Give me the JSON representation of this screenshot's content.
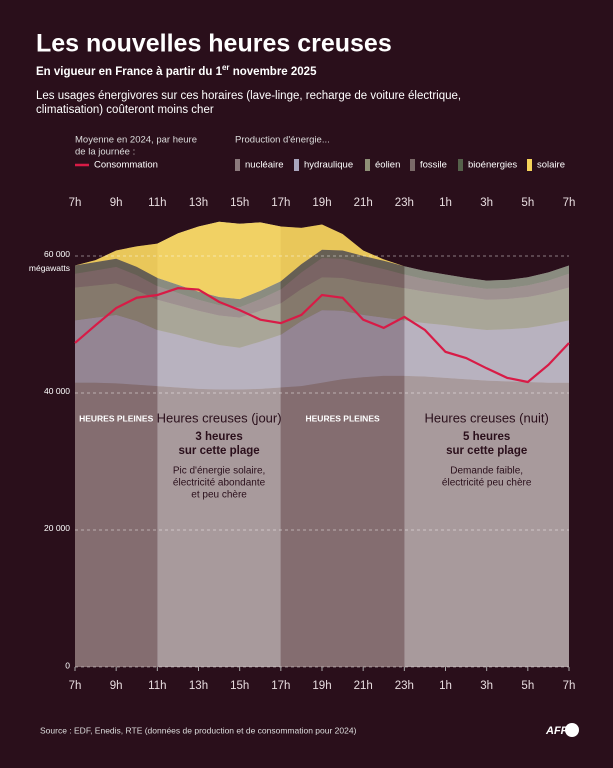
{
  "chart_data": {
    "type": "stacked-area",
    "title": "Les nouvelles heures creuses",
    "subtitle": {
      "before": "En vigueur en France à partir du 1",
      "sup": "er",
      "after": " novembre 2025"
    },
    "description": [
      "Les usages énergivores sur ces horaires (lave-linge, recharge de voiture électrique,",
      "climatisation) coûteront moins cher"
    ],
    "line_legend_note": [
      "Moyenne en 2024, par heure",
      "de la journée :"
    ],
    "area_legend_note": "Production d'énergie...",
    "y_unit": "mégawatts",
    "x": [
      7,
      8,
      9,
      10,
      11,
      12,
      13,
      14,
      15,
      16,
      17,
      18,
      19,
      20,
      21,
      22,
      23,
      24,
      25,
      26,
      27,
      28,
      29,
      30,
      31
    ],
    "xlim": [
      7,
      31
    ],
    "xticks": [
      {
        "value": 7,
        "label": "7h"
      },
      {
        "value": 9,
        "label": "9h"
      },
      {
        "value": 11,
        "label": "11h"
      },
      {
        "value": 13,
        "label": "13h"
      },
      {
        "value": 15,
        "label": "15h"
      },
      {
        "value": 17,
        "label": "17h"
      },
      {
        "value": 19,
        "label": "19h"
      },
      {
        "value": 21,
        "label": "21h"
      },
      {
        "value": 23,
        "label": "23h"
      },
      {
        "value": 25,
        "label": "1h"
      },
      {
        "value": 27,
        "label": "3h"
      },
      {
        "value": 29,
        "label": "5h"
      },
      {
        "value": 31,
        "label": "7h"
      }
    ],
    "ylim": [
      0,
      67000
    ],
    "yticks": [
      0,
      {
        "value": 20000,
        "label": "20 000"
      },
      {
        "value": 40000,
        "label": "40 000"
      },
      {
        "value": 60000,
        "label": "60 000"
      }
    ],
    "grid": true,
    "series": [
      {
        "name": "nucléaire",
        "color": "#8c7a7d",
        "values": [
          41500,
          41500,
          41400,
          41200,
          41000,
          40800,
          40600,
          40500,
          40500,
          40600,
          40800,
          41000,
          41500,
          42000,
          42300,
          42500,
          42500,
          42400,
          42200,
          42000,
          41800,
          41700,
          41600,
          41500,
          41500
        ]
      },
      {
        "name": "hydraulique",
        "color": "#a9a6bd",
        "values": [
          9100,
          9500,
          10000,
          9300,
          8200,
          7700,
          7100,
          6500,
          6100,
          6900,
          7700,
          9500,
          10600,
          10000,
          9100,
          8500,
          8100,
          7800,
          7700,
          7500,
          7400,
          7600,
          7900,
          8500,
          9100
        ]
      },
      {
        "name": "éolien",
        "color": "#8e8f76",
        "values": [
          4800,
          4700,
          4600,
          4500,
          4400,
          4300,
          4300,
          4300,
          4400,
          4500,
          4600,
          4700,
          4800,
          4800,
          4800,
          4800,
          4700,
          4600,
          4500,
          4500,
          4400,
          4400,
          4500,
          4600,
          4800
        ]
      },
      {
        "name": "fossile",
        "color": "#7a6a68",
        "values": [
          2000,
          2200,
          2400,
          2200,
          2000,
          1800,
          1600,
          1500,
          1500,
          1700,
          2000,
          2400,
          2800,
          2800,
          2600,
          2300,
          2000,
          1800,
          1700,
          1600,
          1600,
          1600,
          1700,
          1800,
          2000
        ]
      },
      {
        "name": "bioénergies",
        "color": "#55604a",
        "values": [
          1200,
          1200,
          1200,
          1200,
          1200,
          1200,
          1200,
          1200,
          1200,
          1200,
          1200,
          1200,
          1200,
          1200,
          1200,
          1200,
          1200,
          1200,
          1200,
          1200,
          1200,
          1200,
          1200,
          1200,
          1200
        ]
      },
      {
        "name": "solaire",
        "color": "#f5d35a",
        "values": [
          0,
          300,
          1200,
          3000,
          5000,
          7500,
          9500,
          11000,
          11000,
          10000,
          8000,
          5300,
          3700,
          2400,
          800,
          200,
          0,
          0,
          0,
          0,
          0,
          0,
          0,
          0,
          0
        ]
      }
    ],
    "line": {
      "name": "Consommation",
      "color": "#d81b46",
      "values": [
        47300,
        49900,
        52400,
        53900,
        54300,
        55300,
        55100,
        53300,
        52100,
        50700,
        50200,
        51400,
        54300,
        53900,
        50700,
        49500,
        51100,
        49200,
        46000,
        45100,
        43600,
        42200,
        41600,
        44100,
        47300
      ]
    },
    "bands": [
      {
        "start": 7,
        "end": 11,
        "color": "#7a5e60",
        "label": "HEURES PLEINES"
      },
      {
        "start": 11,
        "end": 17,
        "color": "#cbc0c0",
        "label": "Heures creuses (jour)",
        "duration": [
          "3 heures",
          "sur cette plage"
        ],
        "note": [
          "Pic d'énergie solaire,",
          "électricité abondante",
          "et peu chère"
        ]
      },
      {
        "start": 17,
        "end": 23,
        "color": "#7a5e60",
        "label": "HEURES PLEINES"
      },
      {
        "start": 23,
        "end": 31,
        "color": "#cbc0c0",
        "label": "Heures creuses (nuit)",
        "duration": [
          "5 heures",
          "sur cette plage"
        ],
        "note": [
          "Demande faible,",
          "électricité peu chère"
        ]
      }
    ],
    "source": "Source : EDF, Enedis, RTE (données de production et de consommation pour 2024)",
    "logo": "AFP"
  }
}
